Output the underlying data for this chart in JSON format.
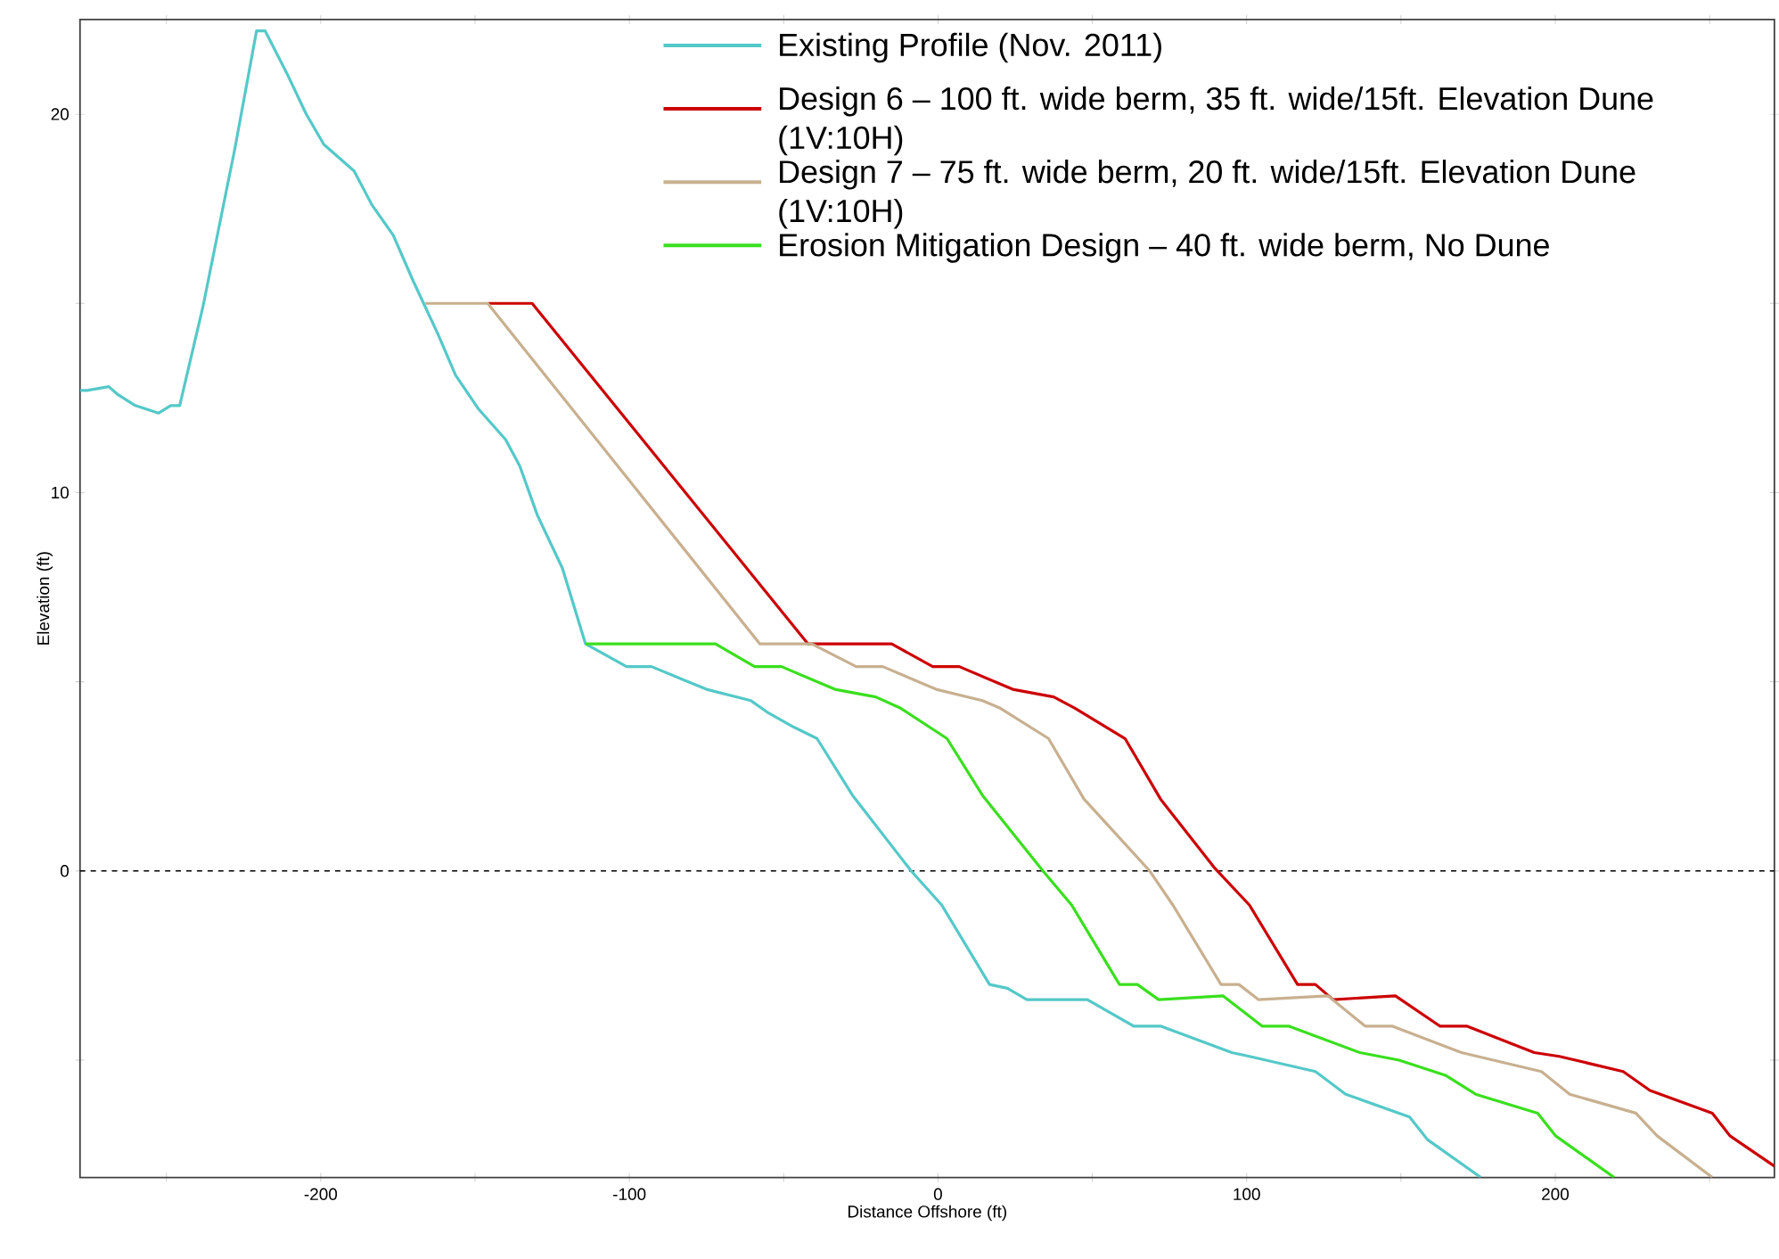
{
  "chart_data": {
    "type": "line",
    "xlabel": "Distance Offshore (ft)",
    "ylabel": "Elevation (ft)",
    "xlim": [
      -278,
      271
    ],
    "ylim": [
      -8.1,
      22.5
    ],
    "xticks": [
      {
        "value": -250,
        "label": null
      },
      -200,
      {
        "value": -150,
        "label": null
      },
      -100,
      {
        "value": -50,
        "label": null
      },
      0,
      {
        "value": 50,
        "label": null
      },
      100,
      {
        "value": 150,
        "label": null
      },
      200,
      {
        "value": 250,
        "label": null
      }
    ],
    "yticks": [
      {
        "value": -5,
        "label": null
      },
      0,
      {
        "value": 5,
        "label": null
      },
      10,
      {
        "value": 15,
        "label": null
      },
      20
    ],
    "legend": "top right",
    "marker": "none",
    "line_style": "solid",
    "ref_lines": [
      {
        "axis": "y",
        "value": 0,
        "color": "#000000",
        "line_style": "dashed"
      }
    ],
    "series": [
      {
        "name": "Existing Profile (Nov. 2011)",
        "color": "#55c8c8",
        "x": [
          -278,
          -275.7,
          -268.7,
          -265.9,
          -260.1,
          -252.6,
          -248.6,
          -245.7,
          -238.2,
          -227.8,
          -220.8,
          -218,
          -210.5,
          -204.7,
          -199,
          -189.2,
          -183.4,
          -176.5,
          -170.1,
          -162.1,
          -156.3,
          -148.8,
          -140.1,
          -135.5,
          -129.8,
          -121.7,
          -114.2,
          -100.9,
          -92.8,
          -75,
          -60.6,
          -55.4,
          -46.7,
          -39.2,
          -27.7,
          -8.7,
          1.2,
          16.7,
          22.5,
          28.8,
          48.4,
          63.4,
          72.1,
          95.2,
          100.9,
          122.3,
          132.1,
          152.8,
          158.6,
          175.9
        ],
        "values": [
          12.7,
          12.7,
          12.8,
          12.6,
          12.3,
          12.1,
          12.3,
          12.3,
          14.9,
          19.1,
          22.2,
          22.2,
          21.0,
          20.0,
          19.2,
          18.5,
          17.6,
          16.8,
          15.6,
          14.2,
          13.1,
          12.2,
          11.4,
          10.7,
          9.4,
          8.0,
          6.0,
          5.4,
          5.4,
          4.8,
          4.5,
          4.2,
          3.8,
          3.5,
          2.0,
          0.0,
          -0.9,
          -3.0,
          -3.1,
          -3.4,
          -3.4,
          -4.1,
          -4.1,
          -4.8,
          -4.9,
          -5.3,
          -5.9,
          -6.5,
          -7.1,
          -8.1
        ]
      },
      {
        "name": "Design 6 – 100 ft. wide berm, 35 ft. wide/15ft. Elevation Dune (1V:10H)",
        "color": "#cc0000",
        "x": [
          -145.9,
          -131.5,
          -42.1,
          -15,
          -1.7,
          6.9,
          24.2,
          37.5,
          44.4,
          60.6,
          72.1,
          89.4,
          100.9,
          116.5,
          122.3,
          128,
          148.2,
          162.6,
          171.3,
          193.2,
          201.3,
          222,
          230.7,
          250.9,
          256.6,
          271
        ],
        "values": [
          15.0,
          15.0,
          6.0,
          6.0,
          5.4,
          5.4,
          4.8,
          4.6,
          4.3,
          3.5,
          1.9,
          0.1,
          -0.9,
          -3.0,
          -3.0,
          -3.4,
          -3.3,
          -4.1,
          -4.1,
          -4.8,
          -4.9,
          -5.3,
          -5.8,
          -6.4,
          -7.0,
          -7.8
        ]
      },
      {
        "name": "Design 7 – 75 ft. wide berm, 20 ft. wide/15ft. Elevation Dune (1V:10H)",
        "color": "#c8b090",
        "x": [
          -166.1,
          -145.9,
          -57.7,
          -40.9,
          -26.5,
          -17.9,
          -0.6,
          14.4,
          20.2,
          35.8,
          47.3,
          68.6,
          76.1,
          91.7,
          97.5,
          103.8,
          126.3,
          138.4,
          147.1,
          169.6,
          195.5,
          204.7,
          226.1,
          233,
          250.9
        ],
        "values": [
          15.0,
          15.0,
          6.0,
          6.0,
          5.4,
          5.4,
          4.8,
          4.5,
          4.3,
          3.5,
          1.9,
          0.0,
          -0.9,
          -3.0,
          -3.0,
          -3.4,
          -3.3,
          -4.1,
          -4.1,
          -4.8,
          -5.3,
          -5.9,
          -6.4,
          -7.0,
          -8.1
        ]
      },
      {
        "name": "Erosion Mitigation Design  – 40 ft. wide berm, No Dune",
        "color": "#3adf1e",
        "x": [
          -114.2,
          -72.1,
          -59.4,
          -50.7,
          -33.4,
          -20.2,
          -12.1,
          2.9,
          14.4,
          34,
          43.3,
          58.8,
          64.6,
          71.5,
          92.3,
          105,
          113.6,
          136.7,
          149.4,
          164.4,
          174.2,
          194.3,
          200.1,
          219.1
        ],
        "values": [
          6.0,
          6.0,
          5.4,
          5.4,
          4.8,
          4.6,
          4.3,
          3.5,
          2.0,
          0.0,
          -0.9,
          -3.0,
          -3.0,
          -3.4,
          -3.3,
          -4.1,
          -4.1,
          -4.8,
          -5.0,
          -5.4,
          -5.9,
          -6.4,
          -7.0,
          -8.1
        ]
      }
    ]
  }
}
